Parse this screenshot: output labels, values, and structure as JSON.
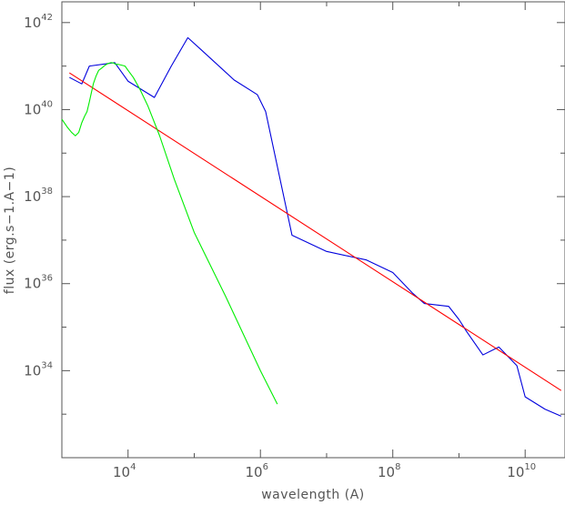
{
  "chart_data": {
    "type": "line",
    "xlabel": "wavelength (A)",
    "ylabel": "flux (erg.s−1.A−1)",
    "xscale": "log",
    "yscale": "log",
    "xlim": [
      1000,
      40000000000
    ],
    "ylim": [
      1e+32,
      3e+42
    ],
    "grid": false,
    "x_ticks": [
      {
        "value": 10000,
        "base": "10",
        "exp": "4"
      },
      {
        "value": 1000000,
        "base": "10",
        "exp": "6"
      },
      {
        "value": 100000000,
        "base": "10",
        "exp": "8"
      },
      {
        "value": 10000000000,
        "base": "10",
        "exp": "10"
      }
    ],
    "y_ticks": [
      {
        "value": 1e+34,
        "base": "10",
        "exp": "34"
      },
      {
        "value": 1e+36,
        "base": "10",
        "exp": "36"
      },
      {
        "value": 1e+38,
        "base": "10",
        "exp": "38"
      },
      {
        "value": 1e+40,
        "base": "10",
        "exp": "40"
      },
      {
        "value": 1e+42,
        "base": "10",
        "exp": "42"
      }
    ],
    "series": [
      {
        "color": "#0000dd",
        "x": [
          1300,
          2000,
          2600,
          6300,
          10000,
          25000,
          45000,
          80000,
          130000,
          400000,
          900000,
          1200000,
          3000000,
          10000000,
          40000000,
          100000000,
          200000000,
          300000000,
          700000000,
          1000000000,
          1300000000,
          2300000000,
          4000000000,
          7500000000,
          10000000000,
          20000000000,
          35000000000
        ],
        "y": [
          5.5e+40,
          3.9e+40,
          1e+41,
          1.2e+41,
          4.5e+40,
          1.9e+40,
          1e+41,
          4.5e+41,
          2.3e+41,
          4.8e+40,
          2.2e+40,
          9e+39,
          1.3e+37,
          5.5e+36,
          3.5e+36,
          1.8e+36,
          6e+35,
          3.5e+35,
          3e+35,
          1.5e+35,
          8e+34,
          2.3e+34,
          3.5e+34,
          1.3e+34,
          2.5e+33,
          1.3e+33,
          9e+32
        ]
      },
      {
        "color": "#ff0000",
        "x": [
          1300,
          35000000000
        ],
        "y": [
          7e+40,
          3.5e+33
        ]
      },
      {
        "color": "#00ee00",
        "x": [
          1000,
          1200,
          1400,
          1600,
          1800,
          2000,
          2200,
          2400,
          2600,
          2800,
          3000,
          3300,
          3600,
          4000,
          4500,
          5000,
          5500,
          6000,
          6500,
          7000,
          8000,
          9000,
          10000,
          12000,
          15000,
          20000,
          30000,
          50000,
          100000,
          300000,
          1000000,
          1800000
        ],
        "y": [
          6e+39,
          4e+39,
          3e+39,
          2.5e+39,
          3e+39,
          5e+39,
          7e+39,
          9e+39,
          1.5e+40,
          2.5e+40,
          4e+40,
          6e+40,
          8e+40,
          9e+40,
          1.05e+41,
          1.15e+41,
          1.2e+41,
          1.18e+41,
          1.1e+41,
          1.1e+41,
          1.05e+41,
          1e+41,
          8e+40,
          5.5e+40,
          3e+40,
          1.2e+40,
          2.5e+39,
          2.5e+38,
          1.5e+37,
          5e+35,
          1e+34,
          1.7e+33
        ]
      }
    ]
  }
}
